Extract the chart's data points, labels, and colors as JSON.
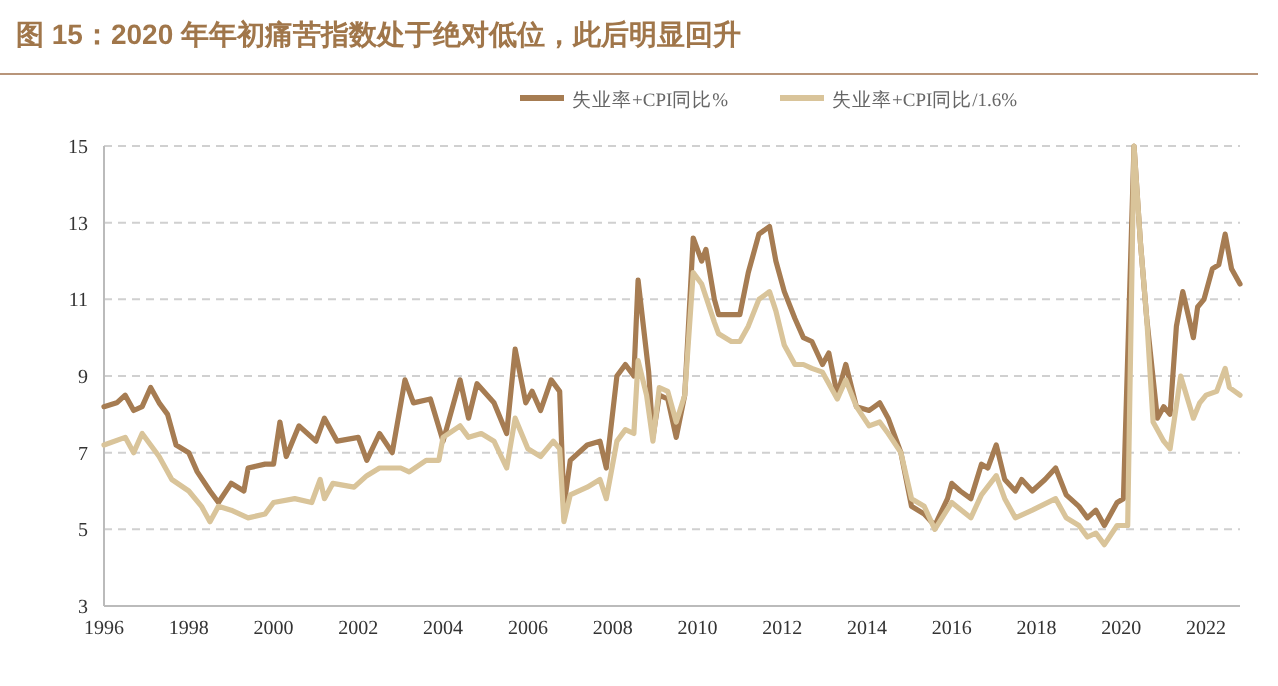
{
  "chart_data": {
    "type": "line",
    "title": "图 15：2020 年年初痛苦指数处于绝对低位，此后明显回升",
    "xlim": [
      1996,
      2022.8
    ],
    "xticks": [
      1996,
      1998,
      2000,
      2002,
      2004,
      2006,
      2008,
      2010,
      2012,
      2014,
      2016,
      2018,
      2020,
      2022
    ],
    "ylim": [
      3,
      15
    ],
    "yticks": [
      3,
      5,
      7,
      9,
      11,
      13,
      15
    ],
    "grid": "y",
    "legend": "top",
    "line_style": "solid",
    "marker": "none",
    "series": [
      {
        "name": "失业率+CPI同比%",
        "color": "#a67c52",
        "x": [
          1996.0,
          1996.3,
          1996.5,
          1996.7,
          1996.9,
          1997.1,
          1997.3,
          1997.5,
          1997.7,
          1998.0,
          1998.2,
          1998.5,
          1998.7,
          1999.0,
          1999.3,
          1999.4,
          1999.8,
          2000.0,
          2000.15,
          2000.3,
          2000.6,
          2001.0,
          2001.2,
          2001.5,
          2002.0,
          2002.2,
          2002.5,
          2002.8,
          2003.1,
          2003.3,
          2003.7,
          2004.0,
          2004.4,
          2004.6,
          2004.8,
          2005.2,
          2005.5,
          2005.7,
          2005.95,
          2006.1,
          2006.3,
          2006.55,
          2006.75,
          2006.85,
          2007.0,
          2007.4,
          2007.7,
          2007.85,
          2008.1,
          2008.3,
          2008.5,
          2008.6,
          2008.85,
          2008.95,
          2009.1,
          2009.3,
          2009.5,
          2009.7,
          2009.9,
          2010.1,
          2010.2,
          2010.4,
          2010.5,
          2010.8,
          2011.0,
          2011.2,
          2011.45,
          2011.7,
          2011.85,
          2012.05,
          2012.3,
          2012.5,
          2012.7,
          2012.95,
          2013.1,
          2013.3,
          2013.5,
          2013.75,
          2014.05,
          2014.3,
          2014.5,
          2014.8,
          2015.05,
          2015.35,
          2015.6,
          2015.9,
          2016.0,
          2016.2,
          2016.45,
          2016.7,
          2016.85,
          2017.05,
          2017.25,
          2017.5,
          2017.65,
          2017.9,
          2018.2,
          2018.45,
          2018.7,
          2019.0,
          2019.2,
          2019.4,
          2019.6,
          2019.9,
          2020.05,
          2020.3,
          2020.45,
          2020.6,
          2020.85,
          2021.0,
          2021.15,
          2021.3,
          2021.45,
          2021.7,
          2021.8,
          2021.95,
          2022.15,
          2022.3,
          2022.45,
          2022.6,
          2022.8
        ],
        "values": [
          8.2,
          8.3,
          8.5,
          8.1,
          8.2,
          8.7,
          8.3,
          8.0,
          7.2,
          7.0,
          6.5,
          6.0,
          5.7,
          6.2,
          6.0,
          6.6,
          6.7,
          6.7,
          7.8,
          6.9,
          7.7,
          7.3,
          7.9,
          7.3,
          7.4,
          6.8,
          7.5,
          7.0,
          8.9,
          8.3,
          8.4,
          7.3,
          8.9,
          7.9,
          8.8,
          8.3,
          7.5,
          9.7,
          8.3,
          8.6,
          8.1,
          8.9,
          8.6,
          5.6,
          6.8,
          7.2,
          7.3,
          6.6,
          9.0,
          9.3,
          9.0,
          11.5,
          9.1,
          7.4,
          8.5,
          8.4,
          7.4,
          8.5,
          12.6,
          12.0,
          12.3,
          11.0,
          10.6,
          10.6,
          10.6,
          11.7,
          12.7,
          12.9,
          12.0,
          11.2,
          10.5,
          10.0,
          9.9,
          9.3,
          9.6,
          8.5,
          9.3,
          8.2,
          8.1,
          8.3,
          7.9,
          7.0,
          5.6,
          5.4,
          5.1,
          5.8,
          6.2,
          6.0,
          5.8,
          6.7,
          6.6,
          7.2,
          6.3,
          6.0,
          6.3,
          6.0,
          6.3,
          6.6,
          5.9,
          5.6,
          5.3,
          5.5,
          5.1,
          5.7,
          5.8,
          15.0,
          12.5,
          10.5,
          7.9,
          8.2,
          8.0,
          10.3,
          11.2,
          10.0,
          10.8,
          11.0,
          11.8,
          11.9,
          12.7,
          11.8,
          11.4
        ]
      },
      {
        "name": "失业率+CPI同比/1.6%",
        "color": "#d9c49a",
        "x": [
          1996.0,
          1996.5,
          1996.7,
          1996.9,
          1997.3,
          1997.6,
          1998.0,
          1998.3,
          1998.5,
          1998.7,
          1999.0,
          1999.4,
          1999.8,
          2000.0,
          2000.5,
          2000.9,
          2001.1,
          2001.2,
          2001.4,
          2001.9,
          2002.2,
          2002.5,
          2003.0,
          2003.2,
          2003.6,
          2003.9,
          2004.0,
          2004.4,
          2004.6,
          2004.9,
          2005.2,
          2005.5,
          2005.7,
          2006.0,
          2006.3,
          2006.6,
          2006.75,
          2006.85,
          2007.0,
          2007.4,
          2007.7,
          2007.85,
          2008.1,
          2008.3,
          2008.5,
          2008.6,
          2008.8,
          2008.95,
          2009.1,
          2009.3,
          2009.5,
          2009.7,
          2009.9,
          2010.1,
          2010.4,
          2010.5,
          2010.8,
          2011.0,
          2011.2,
          2011.45,
          2011.7,
          2011.85,
          2012.05,
          2012.3,
          2012.5,
          2012.7,
          2012.95,
          2013.3,
          2013.5,
          2013.75,
          2014.05,
          2014.3,
          2014.5,
          2014.8,
          2015.05,
          2015.35,
          2015.6,
          2016.0,
          2016.45,
          2016.7,
          2017.05,
          2017.25,
          2017.5,
          2017.9,
          2018.45,
          2018.7,
          2019.0,
          2019.2,
          2019.4,
          2019.6,
          2019.9,
          2020.15,
          2020.3,
          2020.45,
          2020.6,
          2020.75,
          2021.0,
          2021.15,
          2021.4,
          2021.7,
          2021.85,
          2022.0,
          2022.25,
          2022.45,
          2022.55,
          2022.8
        ],
        "values": [
          7.2,
          7.4,
          7.0,
          7.5,
          6.9,
          6.3,
          6.0,
          5.6,
          5.2,
          5.6,
          5.5,
          5.3,
          5.4,
          5.7,
          5.8,
          5.7,
          6.3,
          5.8,
          6.2,
          6.1,
          6.4,
          6.6,
          6.6,
          6.5,
          6.8,
          6.8,
          7.4,
          7.7,
          7.4,
          7.5,
          7.3,
          6.6,
          7.9,
          7.1,
          6.9,
          7.3,
          7.1,
          5.2,
          5.9,
          6.1,
          6.3,
          5.8,
          7.3,
          7.6,
          7.5,
          9.4,
          8.5,
          7.3,
          8.7,
          8.6,
          7.8,
          8.5,
          11.7,
          11.4,
          10.4,
          10.1,
          9.9,
          9.9,
          10.3,
          11.0,
          11.2,
          10.7,
          9.8,
          9.3,
          9.3,
          9.2,
          9.1,
          8.4,
          8.9,
          8.2,
          7.7,
          7.8,
          7.5,
          7.0,
          5.8,
          5.6,
          5.0,
          5.7,
          5.3,
          5.9,
          6.4,
          5.8,
          5.3,
          5.5,
          5.8,
          5.3,
          5.1,
          4.8,
          4.9,
          4.6,
          5.1,
          5.1,
          15.0,
          12.5,
          10.5,
          7.8,
          7.3,
          7.1,
          9.0,
          7.9,
          8.3,
          8.5,
          8.6,
          9.2,
          8.7,
          8.5
        ]
      }
    ]
  }
}
